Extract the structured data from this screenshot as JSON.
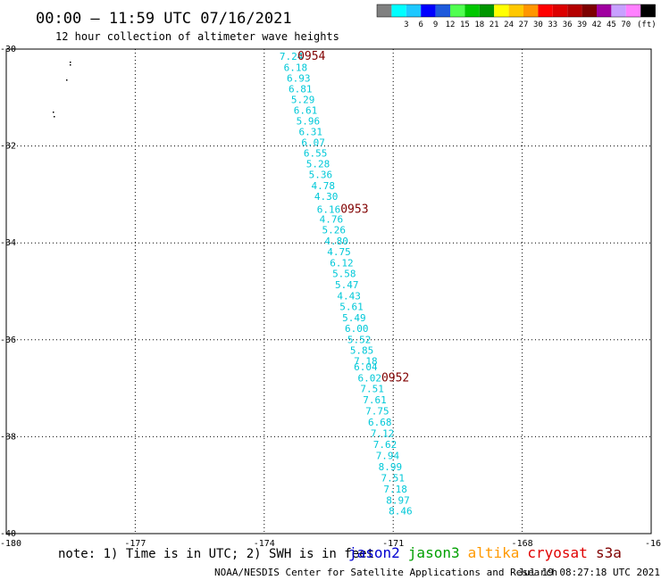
{
  "header": {
    "title": "00:00 — 11:59 UTC 07/16/2021",
    "subtitle": "12 hour collection of altimeter wave heights"
  },
  "color_scale": {
    "colors": [
      "#808080",
      "#00ffff",
      "#1ec8ff",
      "#0000ff",
      "#1e5adc",
      "#50ff50",
      "#00c800",
      "#009600",
      "#ffff00",
      "#ffc800",
      "#ff9600",
      "#ff0000",
      "#dc0000",
      "#b40000",
      "#7d0000",
      "#a000a0",
      "#c8a0ff",
      "#ff80ff",
      "#000000"
    ],
    "labels": [
      "3",
      "6",
      "9",
      "12",
      "15",
      "18",
      "21",
      "24",
      "27",
      "30",
      "33",
      "36",
      "39",
      "42",
      "45",
      "70"
    ],
    "unit": "(ft)"
  },
  "footer": {
    "note": "note: 1) Time is in UTC; 2) SWH is in feet",
    "credit": "NOAA/NESDIS Center for Satellite Applications and Research",
    "timestamp": "Jul 19 08:27:18 UTC 2021",
    "satellites": [
      {
        "name": "jason2",
        "color": "#0000d0"
      },
      {
        "name": "jason3",
        "color": "#00a000"
      },
      {
        "name": "altika",
        "color": "#ff9900"
      },
      {
        "name": "cryosat",
        "color": "#e00000"
      },
      {
        "name": "s3a",
        "color": "#800000"
      }
    ]
  },
  "chart_data": {
    "type": "scatter",
    "x_ticks": [
      "-180",
      "-177",
      "-174",
      "-171",
      "-168",
      "-16"
    ],
    "y_ticks": [
      "-30",
      "-32",
      "-34",
      "-36",
      "-38",
      "-40"
    ],
    "xlim": [
      -180,
      -165
    ],
    "ylim": [
      -40,
      -30
    ],
    "grid": true,
    "label_color": "#00c8d8",
    "time_color": "#800000",
    "points": [
      {
        "lon": -173.37,
        "lat": -30.15,
        "swh": "7.24"
      },
      {
        "lon": -173.27,
        "lat": -30.38,
        "swh": "6.18"
      },
      {
        "lon": -173.2,
        "lat": -30.6,
        "swh": "6.93"
      },
      {
        "lon": -173.16,
        "lat": -30.82,
        "swh": "6.81"
      },
      {
        "lon": -173.1,
        "lat": -31.04,
        "swh": "5.29"
      },
      {
        "lon": -173.04,
        "lat": -31.26,
        "swh": "6.61"
      },
      {
        "lon": -172.98,
        "lat": -31.48,
        "swh": "5.96"
      },
      {
        "lon": -172.92,
        "lat": -31.7,
        "swh": "6.31"
      },
      {
        "lon": -172.86,
        "lat": -31.92,
        "swh": "6.07"
      },
      {
        "lon": -172.81,
        "lat": -32.15,
        "swh": "6.55"
      },
      {
        "lon": -172.75,
        "lat": -32.37,
        "swh": "5.28"
      },
      {
        "lon": -172.69,
        "lat": -32.59,
        "swh": "5.36"
      },
      {
        "lon": -172.63,
        "lat": -32.82,
        "swh": "4.78"
      },
      {
        "lon": -172.56,
        "lat": -33.04,
        "swh": "4.30"
      },
      {
        "lon": -172.5,
        "lat": -33.31,
        "swh": "6.16"
      },
      {
        "lon": -172.44,
        "lat": -33.51,
        "swh": "4.76"
      },
      {
        "lon": -172.38,
        "lat": -33.73,
        "swh": "5.26"
      },
      {
        "lon": -172.32,
        "lat": -33.96,
        "swh": "4.80"
      },
      {
        "lon": -172.26,
        "lat": -34.18,
        "swh": "4.75"
      },
      {
        "lon": -172.2,
        "lat": -34.41,
        "swh": "6.12"
      },
      {
        "lon": -172.14,
        "lat": -34.63,
        "swh": "5.58"
      },
      {
        "lon": -172.08,
        "lat": -34.86,
        "swh": "5.47"
      },
      {
        "lon": -172.03,
        "lat": -35.09,
        "swh": "4.43"
      },
      {
        "lon": -171.97,
        "lat": -35.31,
        "swh": "5.61"
      },
      {
        "lon": -171.91,
        "lat": -35.54,
        "swh": "5.49"
      },
      {
        "lon": -171.85,
        "lat": -35.76,
        "swh": "6.00"
      },
      {
        "lon": -171.79,
        "lat": -35.99,
        "swh": "5.52"
      },
      {
        "lon": -171.73,
        "lat": -36.22,
        "swh": "5.85"
      },
      {
        "lon": -171.64,
        "lat": -36.44,
        "swh": "7.18"
      },
      {
        "lon": -171.64,
        "lat": -36.56,
        "swh": "6.04"
      },
      {
        "lon": -171.55,
        "lat": -36.79,
        "swh": "6.02"
      },
      {
        "lon": -171.49,
        "lat": -37.01,
        "swh": "7.51"
      },
      {
        "lon": -171.43,
        "lat": -37.24,
        "swh": "7.61"
      },
      {
        "lon": -171.37,
        "lat": -37.47,
        "swh": "7.75"
      },
      {
        "lon": -171.31,
        "lat": -37.7,
        "swh": "6.68"
      },
      {
        "lon": -171.25,
        "lat": -37.93,
        "swh": "7.12"
      },
      {
        "lon": -171.19,
        "lat": -38.16,
        "swh": "7.62"
      },
      {
        "lon": -171.13,
        "lat": -38.39,
        "swh": "7.94"
      },
      {
        "lon": -171.07,
        "lat": -38.62,
        "swh": "8.99"
      },
      {
        "lon": -171.01,
        "lat": -38.85,
        "swh": "7.51"
      },
      {
        "lon": -170.95,
        "lat": -39.08,
        "swh": "7.18"
      },
      {
        "lon": -170.89,
        "lat": -39.31,
        "swh": "8.97"
      },
      {
        "lon": -170.83,
        "lat": -39.53,
        "swh": "8.46"
      }
    ],
    "times": [
      {
        "lon": -172.9,
        "lat": -30.15,
        "time": "0954"
      },
      {
        "lon": -171.9,
        "lat": -33.31,
        "time": "0953"
      },
      {
        "lon": -170.95,
        "lat": -36.79,
        "time": "0952"
      }
    ]
  }
}
